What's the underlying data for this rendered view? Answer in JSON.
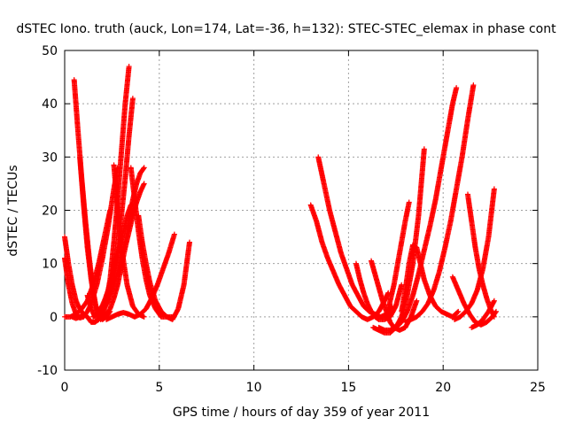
{
  "chart_data": {
    "type": "scatter",
    "title": "dSTEC Iono. truth (auck, Lon=174, Lat=-36, h=132): STEC-STEC_elemax in phase cont",
    "xlabel": "GPS time / hours of day 359 of year 2011",
    "ylabel": "dSTEC  / TECUs",
    "xlim": [
      0,
      25
    ],
    "ylim": [
      -10,
      50
    ],
    "xticks": [
      0,
      5,
      10,
      15,
      20,
      25
    ],
    "yticks": [
      -10,
      0,
      10,
      20,
      30,
      40,
      50
    ],
    "grid": true,
    "marker": "plus",
    "colors": {
      "series": "#ff0000",
      "grid": "#a0a0a0",
      "frame": "#000000"
    },
    "series": [
      {
        "x": [
          0.0,
          0.2,
          0.4,
          0.6,
          0.8,
          1.0,
          1.2
        ],
        "y": [
          15,
          10,
          6,
          3,
          1.5,
          0.5,
          0
        ]
      },
      {
        "x": [
          0.0,
          0.2,
          0.4,
          0.6,
          0.8,
          1.0,
          1.2,
          1.4,
          1.7,
          2.0,
          2.3,
          2.6,
          2.8
        ],
        "y": [
          11,
          6,
          2.5,
          0.5,
          -0.2,
          0,
          1,
          2.5,
          6,
          11,
          17,
          24,
          28
        ]
      },
      {
        "x": [
          0.0,
          0.3,
          0.6,
          0.9,
          1.2,
          1.5,
          1.8,
          2.1,
          2.4
        ],
        "y": [
          0,
          0,
          0.5,
          1.5,
          3,
          6,
          10,
          15,
          20
        ]
      },
      {
        "x": [
          0.5,
          0.7,
          0.9,
          1.1,
          1.3,
          1.5,
          1.7,
          1.9,
          2.1
        ],
        "y": [
          44.5,
          35,
          26,
          18,
          11,
          5,
          1,
          -0.5,
          0
        ]
      },
      {
        "x": [
          0.8,
          1.0,
          1.2,
          1.4,
          1.6,
          1.8,
          2.0,
          2.2,
          2.4
        ],
        "y": [
          30,
          21,
          13,
          7,
          2.5,
          0.5,
          -0.5,
          0,
          1
        ]
      },
      {
        "x": [
          0.4,
          0.6,
          0.8,
          1.0,
          1.2,
          1.4,
          1.6,
          1.8,
          2.0,
          2.2,
          2.4,
          2.6,
          2.8,
          3.0,
          3.2,
          3.4,
          3.6
        ],
        "y": [
          0,
          -0.3,
          0,
          0.5,
          0,
          -1,
          -1,
          -0.5,
          0.5,
          2.5,
          5,
          9,
          13,
          19,
          26,
          34,
          41
        ]
      },
      {
        "x": [
          1.2,
          1.4,
          1.6,
          1.8,
          2.0,
          2.2,
          2.4,
          2.6,
          2.8,
          3.0,
          3.2,
          3.4
        ],
        "y": [
          4,
          1.5,
          0,
          0,
          1,
          3,
          7,
          14,
          22,
          31,
          40,
          47
        ]
      },
      {
        "x": [
          1.5,
          1.7,
          1.9,
          2.1,
          2.3,
          2.5,
          2.7,
          2.9,
          3.1,
          3.3,
          3.5
        ],
        "y": [
          0,
          0.5,
          1.5,
          3,
          5,
          7.5,
          10,
          13,
          16,
          19,
          21
        ]
      },
      {
        "x": [
          1.8,
          2.0,
          2.2,
          2.4,
          2.6,
          2.8,
          3.0,
          3.2,
          3.4,
          3.6,
          3.8,
          4.0,
          4.2
        ],
        "y": [
          0,
          0,
          0.5,
          1.5,
          3.5,
          6,
          9.5,
          13,
          16,
          19,
          21.5,
          23.5,
          25
        ]
      },
      {
        "x": [
          2.0,
          2.3,
          2.6,
          2.9,
          3.2,
          3.4,
          3.6,
          3.8,
          4.0,
          4.2
        ],
        "y": [
          1,
          3,
          6,
          10,
          14,
          18,
          22,
          25,
          27,
          28
        ]
      },
      {
        "x": [
          2.2,
          2.5,
          2.8,
          3.1,
          3.4,
          3.7,
          4.0,
          4.3,
          4.6,
          4.9,
          5.2,
          5.5,
          5.8
        ],
        "y": [
          -0.5,
          0,
          0.5,
          0.8,
          0.5,
          0,
          0.5,
          1.5,
          3.5,
          6,
          9,
          12,
          15.5
        ]
      },
      {
        "x": [
          2.6,
          2.8,
          3.0,
          3.3,
          3.6,
          3.9,
          4.2
        ],
        "y": [
          28.5,
          20,
          13,
          6,
          2,
          0.5,
          0
        ]
      },
      {
        "x": [
          3.5,
          3.7,
          3.9,
          4.1,
          4.3,
          4.5,
          4.8,
          5.1,
          5.4,
          5.7
        ],
        "y": [
          28,
          22,
          16,
          11,
          7,
          4,
          1.5,
          0,
          0,
          0
        ]
      },
      {
        "x": [
          3.9,
          4.1,
          4.3,
          4.5,
          4.8,
          5.1,
          5.4,
          5.7,
          6.0,
          6.3,
          6.6
        ],
        "y": [
          19,
          14,
          10,
          6.5,
          3,
          1,
          0,
          -0.5,
          1.5,
          6,
          14
        ]
      },
      {
        "x": [
          13.0,
          13.3,
          13.6,
          13.9,
          14.2,
          14.5,
          14.8,
          15.1,
          15.4,
          15.7,
          16.0,
          16.3,
          16.6,
          16.9,
          17.1
        ],
        "y": [
          21,
          18,
          14,
          11,
          8.5,
          6,
          4,
          2,
          1,
          0,
          -0.5,
          0,
          1,
          3,
          4.5
        ]
      },
      {
        "x": [
          13.4,
          13.7,
          14.0,
          14.3,
          14.6,
          14.9,
          15.2,
          15.5,
          15.8,
          16.1,
          16.4,
          16.7,
          17.0,
          17.3
        ],
        "y": [
          30,
          25,
          20,
          16,
          12,
          9,
          6,
          4,
          2,
          1,
          0.5,
          0,
          0.5,
          2
        ]
      },
      {
        "x": [
          15.4,
          15.6,
          15.8,
          16.0,
          16.2,
          16.4,
          16.6,
          16.9,
          17.2,
          17.5,
          17.8
        ],
        "y": [
          10,
          7,
          4.5,
          2.5,
          1,
          0,
          -0.5,
          -0.5,
          0,
          2,
          6
        ]
      },
      {
        "x": [
          16.2,
          16.4,
          16.6,
          16.8,
          17.0,
          17.2,
          17.4,
          17.7,
          18.0,
          18.3,
          18.6
        ],
        "y": [
          10.5,
          8,
          5.5,
          3,
          1,
          -1,
          -2,
          -2.5,
          -2,
          0,
          3
        ]
      },
      {
        "x": [
          16.3,
          16.6,
          16.9,
          17.2,
          17.5,
          17.8,
          18.1,
          18.4,
          18.7,
          19.0
        ],
        "y": [
          -2,
          -2.5,
          -3,
          -3,
          -2,
          0,
          4,
          10,
          19,
          31.5
        ]
      },
      {
        "x": [
          16.6,
          16.9,
          17.2,
          17.5,
          17.8,
          18.1,
          18.4,
          18.7,
          19.0,
          19.3,
          19.6,
          19.9,
          20.2,
          20.5,
          20.7
        ],
        "y": [
          -2,
          -2.5,
          -2.5,
          -2,
          -1,
          1,
          4,
          8,
          12.5,
          17,
          22,
          28,
          34,
          40,
          43
        ]
      },
      {
        "x": [
          17.0,
          17.2,
          17.4,
          17.6,
          17.8,
          18.0,
          18.2
        ],
        "y": [
          0,
          3,
          6,
          10,
          14,
          18,
          21.5
        ]
      },
      {
        "x": [
          17.8,
          18.0,
          18.2,
          18.4,
          18.6,
          18.8,
          19.0,
          19.3,
          19.6,
          19.9,
          20.2,
          20.5,
          20.8
        ],
        "y": [
          1,
          5,
          10,
          13.5,
          13,
          10,
          7,
          4,
          2,
          1,
          0.5,
          0,
          1
        ]
      },
      {
        "x": [
          18.0,
          18.3,
          18.6,
          18.9,
          19.2,
          19.5,
          19.8,
          20.1,
          20.4,
          20.7,
          21.0,
          21.3,
          21.6
        ],
        "y": [
          -1,
          -0.5,
          0,
          1,
          2.5,
          5,
          8.5,
          13,
          18,
          24,
          30,
          37,
          43.5
        ]
      },
      {
        "x": [
          20.5,
          20.8,
          21.1,
          21.4,
          21.7,
          22.0,
          22.3,
          22.6,
          22.8
        ],
        "y": [
          7.5,
          5,
          2.5,
          0.5,
          -1,
          -1.5,
          -1,
          0,
          1
        ]
      },
      {
        "x": [
          21.3,
          21.5,
          21.7,
          21.9,
          22.1,
          22.3,
          22.5,
          22.7
        ],
        "y": [
          23,
          18,
          13,
          9,
          6,
          3.5,
          1.5,
          0
        ]
      },
      {
        "x": [
          20.6,
          20.9,
          21.2,
          21.5,
          21.8,
          22.1,
          22.4,
          22.7
        ],
        "y": [
          -0.5,
          0,
          1,
          2.5,
          5,
          9,
          15,
          24
        ]
      },
      {
        "x": [
          21.5,
          21.8,
          22.1,
          22.4,
          22.7
        ],
        "y": [
          -2,
          -1.5,
          -0.5,
          1,
          3
        ]
      }
    ]
  }
}
